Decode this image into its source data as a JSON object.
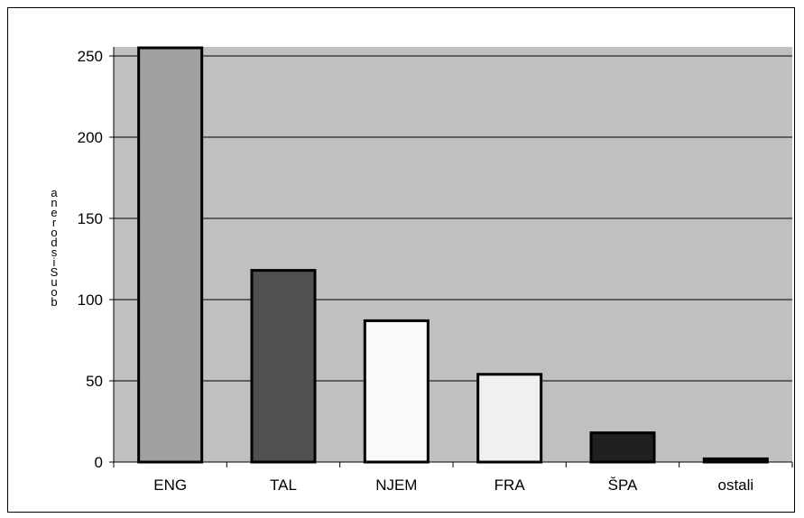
{
  "chart_data": {
    "type": "bar",
    "categories": [
      "ENG",
      "TAL",
      "NJEM",
      "FRA",
      "ŠPA",
      "ostali"
    ],
    "values": [
      255,
      118,
      87,
      54,
      18,
      2
    ],
    "bar_colors": [
      "#a0a0a0",
      "#505050",
      "#fafafa",
      "#f0f0f0",
      "#202020",
      "#101010"
    ],
    "ylabel": "broj sudionika",
    "ylabel_stacked": "anerodsiSuob",
    "ylim": [
      0,
      250
    ],
    "yticks": [
      0,
      50,
      100,
      150,
      200,
      250
    ],
    "grid": true,
    "plot_background": "#c0c0c0",
    "legend": "none"
  }
}
